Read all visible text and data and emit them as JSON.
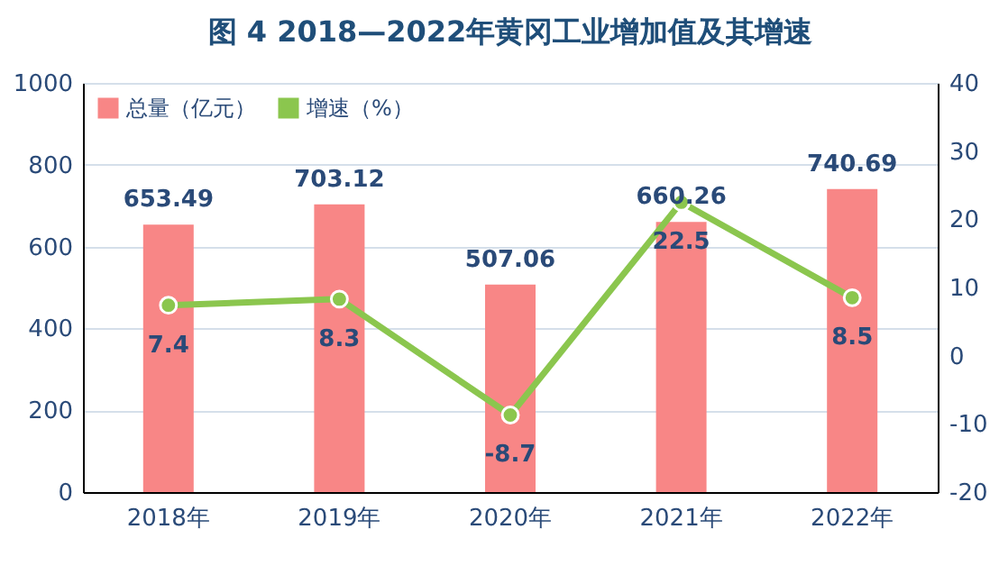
{
  "chart_data": {
    "type": "bar",
    "title": "图 4   2018—2022年黄冈工业增加值及其增速",
    "categories": [
      "2018年",
      "2019年",
      "2020年",
      "2021年",
      "2022年"
    ],
    "series": [
      {
        "name": "总量（亿元）",
        "color": "#f88686",
        "values": [
          653.49,
          703.12,
          507.06,
          660.26,
          740.69
        ]
      },
      {
        "name": "增速（%）",
        "type": "line",
        "axis": "y2",
        "color": "#8bc64e",
        "values": [
          7.4,
          8.3,
          -8.7,
          22.5,
          8.5
        ]
      }
    ],
    "ylim": [
      0,
      1000
    ],
    "yticks": [
      0,
      200,
      400,
      600,
      800,
      1000
    ],
    "y2lim": [
      -20,
      40
    ],
    "y2ticks": [
      -20,
      -10,
      0,
      10,
      20,
      30,
      40
    ],
    "grid": "y",
    "legend": "top left",
    "marker": "circle",
    "line_style": "solid",
    "data_labels": true
  }
}
